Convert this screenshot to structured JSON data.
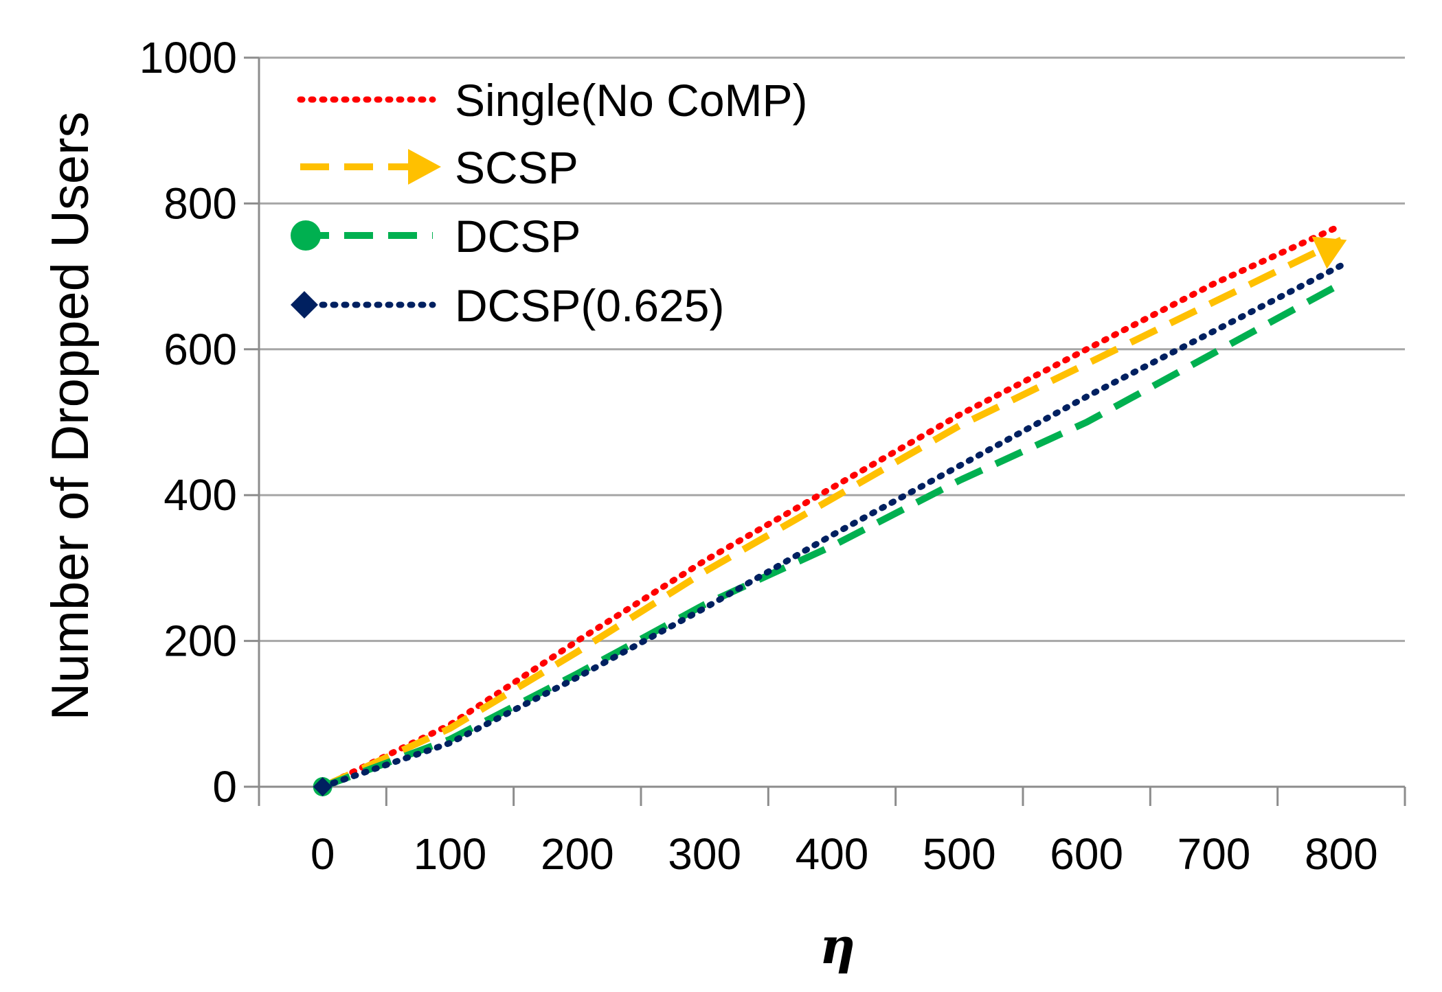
{
  "chart_data": {
    "type": "line",
    "title": "",
    "xlabel": "η",
    "ylabel": "Number of Dropped Users",
    "xlim": [
      -50,
      850
    ],
    "ylim": [
      0,
      1000
    ],
    "xticks": [
      0,
      100,
      200,
      300,
      400,
      500,
      600,
      700,
      800
    ],
    "xtick_labels": [
      "0",
      "100",
      "200",
      "300",
      "400",
      "500",
      "600",
      "700",
      "800"
    ],
    "yticks": [
      0,
      200,
      400,
      600,
      800,
      1000
    ],
    "ytick_labels": [
      "0",
      "200",
      "400",
      "600",
      "800",
      "1000"
    ],
    "grid": "horizontal",
    "legend_position": "top-left",
    "series": [
      {
        "name": "Single(No CoMP)",
        "color": "#ff0000",
        "style": "dotted",
        "marker": "none",
        "x": [
          0,
          100,
          200,
          300,
          400,
          500,
          600,
          700,
          800
        ],
        "y": [
          0,
          85,
          200,
          310,
          410,
          510,
          600,
          690,
          770
        ]
      },
      {
        "name": "SCSP",
        "color": "#ffc000",
        "style": "dashed",
        "marker": "arrow",
        "x": [
          0,
          100,
          200,
          300,
          400,
          500,
          600,
          700,
          800
        ],
        "y": [
          0,
          80,
          185,
          295,
          395,
          495,
          580,
          665,
          750
        ]
      },
      {
        "name": "DCSP",
        "color": "#00b050",
        "style": "dashed",
        "marker": "circle",
        "x": [
          0,
          100,
          200,
          300,
          400,
          500,
          600,
          700,
          800
        ],
        "y": [
          0,
          65,
          155,
          250,
          330,
          420,
          500,
          595,
          690
        ]
      },
      {
        "name": "DCSP(0.625)",
        "color": "#002060",
        "style": "dotted",
        "marker": "diamond",
        "x": [
          0,
          100,
          200,
          300,
          400,
          500,
          600,
          700,
          800
        ],
        "y": [
          0,
          60,
          150,
          245,
          345,
          440,
          535,
          625,
          715
        ]
      }
    ]
  }
}
